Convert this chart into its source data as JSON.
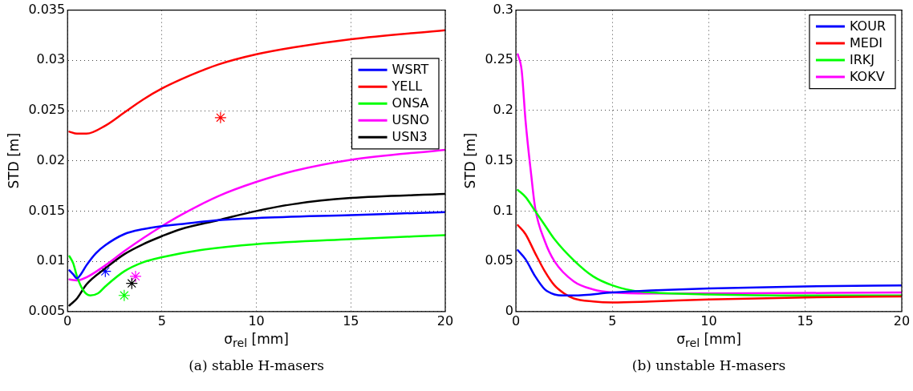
{
  "chart_data": [
    {
      "type": "line",
      "xlabel": "σ$_{rel}$ [mm]",
      "ylabel": "STD [m]",
      "annotations": [
        "(a) stable H-masers"
      ],
      "xlim": [
        0,
        20
      ],
      "xticks": [
        0,
        5,
        10,
        15,
        20
      ],
      "ylim": [
        0.005,
        0.035
      ],
      "yticks": [
        0.005,
        0.01,
        0.015,
        0.02,
        0.025,
        0.03,
        0.035
      ],
      "grid": true,
      "legend": "right",
      "series": [
        {
          "name": "WSRT",
          "color": "#0000ff",
          "x": [
            0.1,
            0.3,
            0.5,
            0.7,
            1,
            1.5,
            2,
            3,
            4,
            5,
            6,
            8,
            10,
            15,
            20
          ],
          "values": [
            0.0091,
            0.0087,
            0.0083,
            0.0087,
            0.0096,
            0.0108,
            0.0116,
            0.0127,
            0.0132,
            0.0135,
            0.0137,
            0.0141,
            0.0143,
            0.0146,
            0.0149
          ]
        },
        {
          "name": "YELL",
          "color": "#ff0000",
          "x": [
            0.1,
            0.5,
            1,
            2,
            3,
            4,
            5,
            6,
            7,
            8,
            10,
            12,
            15,
            20
          ],
          "values": [
            0.0229,
            0.0227,
            0.0227,
            0.0235,
            0.0248,
            0.0261,
            0.0272,
            0.0281,
            0.0289,
            0.0296,
            0.0306,
            0.0313,
            0.0321,
            0.033
          ]
        },
        {
          "name": "ONSA",
          "color": "#00ff00",
          "x": [
            0.1,
            0.3,
            0.5,
            0.8,
            1.2,
            1.6,
            2,
            3,
            4,
            5,
            7,
            10,
            15,
            20
          ],
          "values": [
            0.0105,
            0.0098,
            0.0085,
            0.0072,
            0.0066,
            0.0068,
            0.0075,
            0.009,
            0.0099,
            0.0104,
            0.0111,
            0.0117,
            0.0122,
            0.0126
          ]
        },
        {
          "name": "USNO",
          "color": "#ff00ff",
          "x": [
            0.1,
            0.5,
            1,
            2,
            3,
            4,
            5,
            6,
            8,
            10,
            12,
            15,
            20
          ],
          "values": [
            0.0082,
            0.0081,
            0.0084,
            0.0096,
            0.011,
            0.0123,
            0.0135,
            0.0146,
            0.0165,
            0.0179,
            0.019,
            0.0201,
            0.0211
          ]
        },
        {
          "name": "USN3",
          "color": "#000000",
          "x": [
            0.1,
            0.5,
            1,
            2,
            3,
            4,
            5,
            6,
            8,
            10,
            12,
            15,
            20
          ],
          "values": [
            0.0056,
            0.0063,
            0.0077,
            0.0093,
            0.0107,
            0.0117,
            0.0125,
            0.0132,
            0.0141,
            0.015,
            0.0157,
            0.0163,
            0.0167
          ]
        },
        {
          "type": "scatter",
          "marker": "cross",
          "color": "#0000ff",
          "x": [
            2.0
          ],
          "values": [
            0.009
          ]
        },
        {
          "type": "scatter",
          "marker": "cross",
          "color": "#ff0000",
          "x": [
            8.1
          ],
          "values": [
            0.0243
          ]
        },
        {
          "type": "scatter",
          "marker": "cross",
          "color": "#00ff00",
          "x": [
            3.0
          ],
          "values": [
            0.0066
          ]
        },
        {
          "type": "scatter",
          "marker": "cross",
          "color": "#000000",
          "x": [
            3.4
          ],
          "values": [
            0.0078
          ]
        },
        {
          "type": "scatter",
          "marker": "cross",
          "color": "#ff00ff",
          "x": [
            3.6
          ],
          "values": [
            0.0085
          ]
        }
      ]
    },
    {
      "type": "line",
      "xlabel": "σ$_{rel}$ [mm]",
      "ylabel": "STD [m]",
      "annotations": [
        "(b) unstable H-masers"
      ],
      "xlim": [
        0,
        20
      ],
      "xticks": [
        0,
        5,
        10,
        15,
        20
      ],
      "ylim": [
        0,
        0.3
      ],
      "yticks": [
        0,
        0.05,
        0.1,
        0.15,
        0.2,
        0.25,
        0.3
      ],
      "grid": true,
      "legend": "top right",
      "series": [
        {
          "name": "KOUR",
          "color": "#0000ff",
          "x": [
            0.1,
            0.5,
            1,
            1.5,
            2,
            2.5,
            3,
            5,
            7,
            10,
            15,
            20
          ],
          "values": [
            0.061,
            0.052,
            0.035,
            0.022,
            0.017,
            0.016,
            0.016,
            0.019,
            0.021,
            0.023,
            0.025,
            0.026
          ]
        },
        {
          "name": "MEDI",
          "color": "#ff0000",
          "x": [
            0.1,
            0.5,
            1,
            1.5,
            2,
            2.5,
            3,
            4,
            5,
            7,
            10,
            15,
            20
          ],
          "values": [
            0.086,
            0.077,
            0.058,
            0.04,
            0.026,
            0.018,
            0.013,
            0.01,
            0.009,
            0.01,
            0.012,
            0.014,
            0.015
          ]
        },
        {
          "name": "IRKJ",
          "color": "#00ff00",
          "x": [
            0.1,
            0.5,
            1,
            1.5,
            2,
            3,
            4,
            5,
            6,
            7,
            10,
            15,
            20
          ],
          "values": [
            0.121,
            0.114,
            0.1,
            0.086,
            0.072,
            0.051,
            0.035,
            0.026,
            0.021,
            0.019,
            0.017,
            0.016,
            0.016
          ]
        },
        {
          "name": "KOKV",
          "color": "#ff00ff",
          "x": [
            0.1,
            0.3,
            0.5,
            0.8,
            1,
            1.5,
            2,
            3,
            4,
            5,
            7,
            10,
            20
          ],
          "values": [
            0.256,
            0.24,
            0.19,
            0.135,
            0.103,
            0.07,
            0.05,
            0.03,
            0.022,
            0.019,
            0.018,
            0.018,
            0.019
          ]
        }
      ]
    }
  ]
}
